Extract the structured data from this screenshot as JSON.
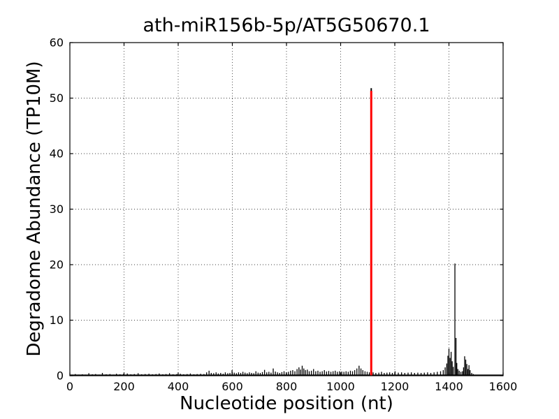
{
  "figure": {
    "background": "#ffffff"
  },
  "chart_data": {
    "type": "bar",
    "subtype": "degradome-spike-plot",
    "title": "ath-miR156b-5p/AT5G50670.1",
    "xlabel": "Nucleotide position (nt)",
    "ylabel": "Degradome Abundance (TP10M)",
    "xlim": [
      0,
      1600
    ],
    "ylim": [
      0,
      60
    ],
    "x_ticks": [
      0,
      200,
      400,
      600,
      800,
      1000,
      1200,
      1400,
      1600
    ],
    "y_ticks": [
      0,
      10,
      20,
      30,
      40,
      50,
      60
    ],
    "grid": "dotted",
    "legend": "none",
    "signal_color": "#000000",
    "highlight_color": "#ff0000",
    "highlight_peak": {
      "x": 1113,
      "value": 51.3,
      "black_tip_value": 51.8
    },
    "peaks": [
      [
        8,
        0.2
      ],
      [
        20,
        0.3
      ],
      [
        33,
        0.2
      ],
      [
        46,
        0.25
      ],
      [
        58,
        0.2
      ],
      [
        70,
        0.45
      ],
      [
        83,
        0.25
      ],
      [
        95,
        0.3
      ],
      [
        108,
        0.2
      ],
      [
        120,
        0.5
      ],
      [
        134,
        0.25
      ],
      [
        148,
        0.3
      ],
      [
        161,
        0.2
      ],
      [
        172,
        0.35
      ],
      [
        185,
        0.25
      ],
      [
        198,
        0.3
      ],
      [
        212,
        0.4
      ],
      [
        225,
        0.25
      ],
      [
        238,
        0.3
      ],
      [
        252,
        0.45
      ],
      [
        265,
        0.25
      ],
      [
        278,
        0.3
      ],
      [
        292,
        0.35
      ],
      [
        305,
        0.25
      ],
      [
        318,
        0.3
      ],
      [
        330,
        0.4
      ],
      [
        343,
        0.25
      ],
      [
        355,
        0.3
      ],
      [
        368,
        0.45
      ],
      [
        381,
        0.25
      ],
      [
        395,
        0.3
      ],
      [
        408,
        0.35
      ],
      [
        420,
        0.25
      ],
      [
        433,
        0.3
      ],
      [
        445,
        0.4
      ],
      [
        458,
        0.25
      ],
      [
        470,
        0.3
      ],
      [
        483,
        0.35
      ],
      [
        495,
        0.3
      ],
      [
        505,
        0.6
      ],
      [
        514,
        0.9
      ],
      [
        522,
        0.5
      ],
      [
        531,
        0.45
      ],
      [
        540,
        0.6
      ],
      [
        548,
        0.4
      ],
      [
        557,
        0.5
      ],
      [
        566,
        0.35
      ],
      [
        574,
        0.6
      ],
      [
        583,
        0.45
      ],
      [
        591,
        0.5
      ],
      [
        599,
        1.0
      ],
      [
        607,
        0.55
      ],
      [
        615,
        0.45
      ],
      [
        623,
        0.6
      ],
      [
        631,
        0.5
      ],
      [
        639,
        0.7
      ],
      [
        647,
        0.55
      ],
      [
        655,
        0.45
      ],
      [
        663,
        0.6
      ],
      [
        671,
        0.5
      ],
      [
        679,
        0.45
      ],
      [
        687,
        0.8
      ],
      [
        695,
        0.55
      ],
      [
        703,
        0.5
      ],
      [
        711,
        0.65
      ],
      [
        719,
        1.05
      ],
      [
        727,
        0.6
      ],
      [
        735,
        0.7
      ],
      [
        743,
        0.55
      ],
      [
        751,
        1.3
      ],
      [
        759,
        0.75
      ],
      [
        767,
        0.6
      ],
      [
        775,
        0.5
      ],
      [
        783,
        0.65
      ],
      [
        791,
        0.8
      ],
      [
        799,
        0.6
      ],
      [
        807,
        0.7
      ],
      [
        815,
        0.9
      ],
      [
        823,
        1.0
      ],
      [
        831,
        0.8
      ],
      [
        839,
        1.2
      ],
      [
        846,
        1.5
      ],
      [
        852,
        1.1
      ],
      [
        858,
        1.8
      ],
      [
        864,
        1.3
      ],
      [
        870,
        1.0
      ],
      [
        877,
        1.1
      ],
      [
        884,
        0.8
      ],
      [
        892,
        0.9
      ],
      [
        900,
        1.2
      ],
      [
        908,
        0.8
      ],
      [
        916,
        0.9
      ],
      [
        924,
        0.7
      ],
      [
        932,
        0.8
      ],
      [
        940,
        1.0
      ],
      [
        948,
        0.75
      ],
      [
        956,
        0.85
      ],
      [
        964,
        0.7
      ],
      [
        972,
        0.8
      ],
      [
        980,
        0.9
      ],
      [
        988,
        0.7
      ],
      [
        996,
        0.8
      ],
      [
        1004,
        0.75
      ],
      [
        1012,
        0.7
      ],
      [
        1020,
        0.8
      ],
      [
        1028,
        0.7
      ],
      [
        1036,
        0.9
      ],
      [
        1044,
        0.8
      ],
      [
        1052,
        1.0
      ],
      [
        1060,
        1.3
      ],
      [
        1068,
        1.8
      ],
      [
        1075,
        1.3
      ],
      [
        1082,
        1.0
      ],
      [
        1090,
        0.8
      ],
      [
        1098,
        0.7
      ],
      [
        1106,
        0.6
      ],
      [
        1120,
        0.6
      ],
      [
        1130,
        0.5
      ],
      [
        1141,
        0.55
      ],
      [
        1151,
        0.7
      ],
      [
        1161,
        0.5
      ],
      [
        1171,
        0.55
      ],
      [
        1181,
        0.6
      ],
      [
        1191,
        0.5
      ],
      [
        1201,
        0.8
      ],
      [
        1213,
        0.55
      ],
      [
        1225,
        0.6
      ],
      [
        1237,
        0.5
      ],
      [
        1249,
        0.55
      ],
      [
        1261,
        0.6
      ],
      [
        1273,
        0.5
      ],
      [
        1285,
        0.55
      ],
      [
        1297,
        0.5
      ],
      [
        1309,
        0.55
      ],
      [
        1321,
        0.6
      ],
      [
        1333,
        0.5
      ],
      [
        1345,
        0.6
      ],
      [
        1357,
        0.7
      ],
      [
        1369,
        0.8
      ],
      [
        1379,
        1.0
      ],
      [
        1386,
        1.5
      ],
      [
        1392,
        2.2
      ],
      [
        1396,
        3.6
      ],
      [
        1400,
        4.9
      ],
      [
        1404,
        3.2
      ],
      [
        1408,
        4.3
      ],
      [
        1412,
        2.6
      ],
      [
        1416,
        1.6
      ],
      [
        1422,
        20.2
      ],
      [
        1426,
        6.8
      ],
      [
        1429,
        2.3
      ],
      [
        1433,
        1.2
      ],
      [
        1438,
        0.9
      ],
      [
        1444,
        0.7
      ],
      [
        1450,
        0.8
      ],
      [
        1454,
        1.5
      ],
      [
        1458,
        3.5
      ],
      [
        1462,
        2.9
      ],
      [
        1466,
        2.1
      ],
      [
        1470,
        1.2
      ],
      [
        1474,
        1.9
      ],
      [
        1478,
        1.0
      ],
      [
        1484,
        0.5
      ],
      [
        1490,
        0.3
      ]
    ]
  }
}
